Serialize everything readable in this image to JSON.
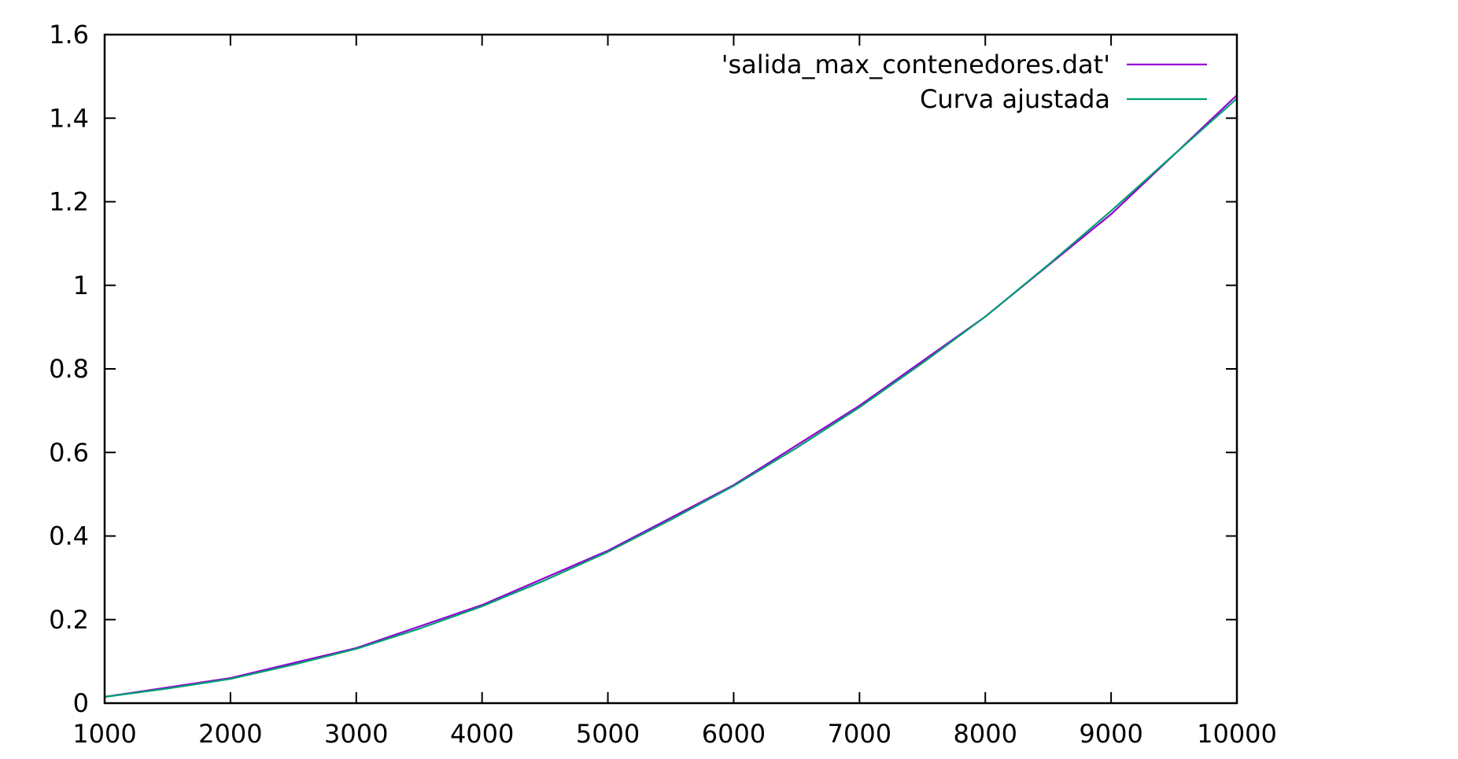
{
  "chart_data": {
    "type": "line",
    "title": "",
    "xlabel": "",
    "ylabel": "",
    "xlim": [
      1000,
      10000
    ],
    "ylim": [
      0,
      1.6
    ],
    "x_ticks": [
      "1000",
      "2000",
      "3000",
      "4000",
      "5000",
      "6000",
      "7000",
      "8000",
      "9000",
      "10000"
    ],
    "y_ticks": [
      "0",
      "0.2",
      "0.4",
      "0.6",
      "0.8",
      "1",
      "1.2",
      "1.4",
      "1.6"
    ],
    "grid": false,
    "legend_position": "top-right",
    "series": [
      {
        "name": "'salida_max_contenedores.dat'",
        "color": "#9400d3",
        "x": [
          1000,
          2000,
          3000,
          4000,
          5000,
          6000,
          7000,
          8000,
          9000,
          10000
        ],
        "y": [
          0.015,
          0.06,
          0.132,
          0.235,
          0.365,
          0.522,
          0.712,
          0.925,
          1.17,
          1.455
        ]
      },
      {
        "name": "Curva ajustada",
        "color": "#009e73",
        "x": [
          1000,
          1500,
          2000,
          2500,
          3000,
          3500,
          4000,
          4500,
          5000,
          5500,
          6000,
          6500,
          7000,
          7500,
          8000,
          8500,
          9000,
          9500,
          10000
        ],
        "y": [
          0.015,
          0.035,
          0.058,
          0.092,
          0.13,
          0.178,
          0.232,
          0.294,
          0.362,
          0.439,
          0.52,
          0.611,
          0.708,
          0.814,
          0.925,
          1.049,
          1.178,
          1.313,
          1.447
        ]
      }
    ]
  }
}
